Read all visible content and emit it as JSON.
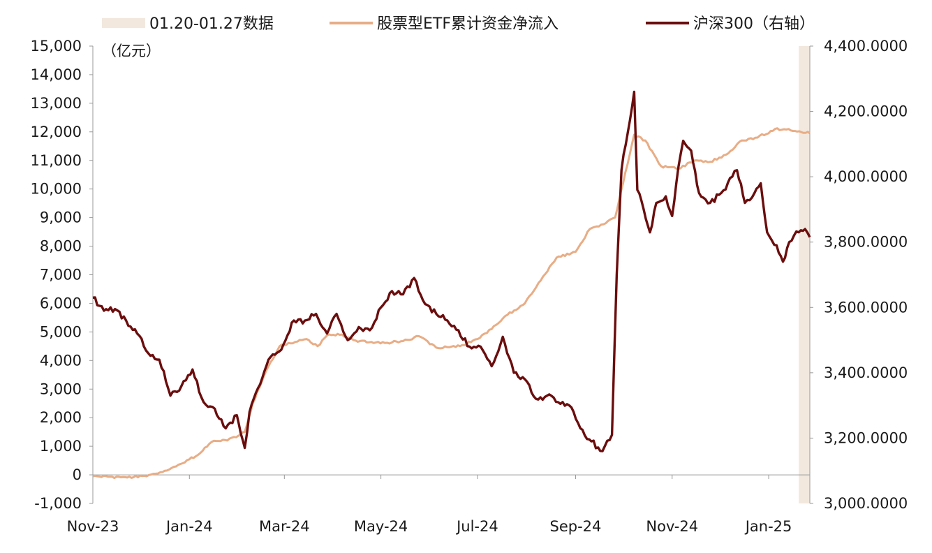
{
  "chart_data": {
    "type": "line",
    "y_unit_label": "（亿元）",
    "legend": [
      {
        "name": "01.20-01.27数据",
        "kind": "band",
        "color": "#f2e8de"
      },
      {
        "name": "股票型ETF累计资金净流入",
        "kind": "line",
        "color": "#e8ad86"
      },
      {
        "name": "沪深300（右轴）",
        "kind": "line",
        "color": "#6b0d0d"
      }
    ],
    "x_ticks": [
      "Nov-23",
      "Jan-24",
      "Mar-24",
      "May-24",
      "Jul-24",
      "Sep-24",
      "Nov-24",
      "Jan-25"
    ],
    "x_tick_dates": [
      "2023-11-01",
      "2024-01-01",
      "2024-03-01",
      "2024-05-01",
      "2024-07-01",
      "2024-09-01",
      "2024-11-01",
      "2025-01-01"
    ],
    "x_range": [
      "2023-11-01",
      "2025-01-27"
    ],
    "highlight_range": [
      "2025-01-20",
      "2025-01-27"
    ],
    "y_left": {
      "ylim": [
        -1000,
        15000
      ],
      "ticks": [
        "15,000",
        "14,000",
        "13,000",
        "12,000",
        "11,000",
        "10,000",
        "9,000",
        "8,000",
        "7,000",
        "6,000",
        "5,000",
        "4,000",
        "3,000",
        "2,000",
        "1,000",
        "0",
        "-1,000"
      ],
      "tick_values": [
        15000,
        14000,
        13000,
        12000,
        11000,
        10000,
        9000,
        8000,
        7000,
        6000,
        5000,
        4000,
        3000,
        2000,
        1000,
        0,
        -1000
      ]
    },
    "y_right": {
      "ylim": [
        3000,
        4400
      ],
      "ticks": [
        "4,400.0000",
        "4,200.0000",
        "4,000.0000",
        "3,800.0000",
        "3,600.0000",
        "3,400.0000",
        "3,200.0000",
        "3,000.0000"
      ],
      "tick_values": [
        4400,
        4200,
        4000,
        3800,
        3600,
        3400,
        3200,
        3000
      ]
    },
    "series": [
      {
        "name": "股票型ETF累计资金净流入",
        "axis": "left",
        "color": "#e8ad86",
        "points": [
          [
            "2023-11-01",
            -50
          ],
          [
            "2023-11-20",
            -80
          ],
          [
            "2023-12-05",
            -50
          ],
          [
            "2023-12-15",
            100
          ],
          [
            "2023-12-25",
            350
          ],
          [
            "2024-01-05",
            650
          ],
          [
            "2024-01-15",
            1150
          ],
          [
            "2024-01-25",
            1200
          ],
          [
            "2024-02-05",
            1500
          ],
          [
            "2024-02-10",
            2500
          ],
          [
            "2024-02-20",
            3800
          ],
          [
            "2024-02-27",
            4500
          ],
          [
            "2024-03-05",
            4600
          ],
          [
            "2024-03-15",
            4750
          ],
          [
            "2024-03-22",
            4500
          ],
          [
            "2024-03-28",
            4880
          ],
          [
            "2024-04-05",
            4900
          ],
          [
            "2024-04-15",
            4700
          ],
          [
            "2024-04-25",
            4650
          ],
          [
            "2024-05-05",
            4620
          ],
          [
            "2024-05-15",
            4680
          ],
          [
            "2024-05-25",
            4850
          ],
          [
            "2024-06-05",
            4450
          ],
          [
            "2024-06-20",
            4500
          ],
          [
            "2024-07-01",
            4750
          ],
          [
            "2024-07-10",
            5100
          ],
          [
            "2024-07-20",
            5600
          ],
          [
            "2024-07-31",
            6000
          ],
          [
            "2024-08-10",
            6800
          ],
          [
            "2024-08-20",
            7600
          ],
          [
            "2024-09-01",
            7800
          ],
          [
            "2024-09-10",
            8600
          ],
          [
            "2024-09-20",
            8800
          ],
          [
            "2024-09-26",
            9000
          ],
          [
            "2024-10-01",
            10200
          ],
          [
            "2024-10-08",
            11900
          ],
          [
            "2024-10-15",
            11700
          ],
          [
            "2024-10-25",
            10800
          ],
          [
            "2024-11-05",
            10700
          ],
          [
            "2024-11-15",
            11000
          ],
          [
            "2024-11-25",
            10950
          ],
          [
            "2024-12-05",
            11200
          ],
          [
            "2024-12-15",
            11700
          ],
          [
            "2024-12-25",
            11800
          ],
          [
            "2025-01-05",
            12100
          ],
          [
            "2025-01-15",
            12050
          ],
          [
            "2025-01-27",
            11950
          ]
        ]
      },
      {
        "name": "沪深300（右轴）",
        "axis": "right",
        "color": "#6b0d0d",
        "points": [
          [
            "2023-11-01",
            3630
          ],
          [
            "2023-11-08",
            3590
          ],
          [
            "2023-11-15",
            3595
          ],
          [
            "2023-11-22",
            3560
          ],
          [
            "2023-11-29",
            3520
          ],
          [
            "2023-12-06",
            3460
          ],
          [
            "2023-12-13",
            3440
          ],
          [
            "2023-12-20",
            3330
          ],
          [
            "2023-12-27",
            3360
          ],
          [
            "2024-01-03",
            3410
          ],
          [
            "2024-01-10",
            3310
          ],
          [
            "2024-01-17",
            3290
          ],
          [
            "2024-01-24",
            3230
          ],
          [
            "2024-01-31",
            3270
          ],
          [
            "2024-02-05",
            3170
          ],
          [
            "2024-02-08",
            3280
          ],
          [
            "2024-02-20",
            3440
          ],
          [
            "2024-02-28",
            3470
          ],
          [
            "2024-03-07",
            3560
          ],
          [
            "2024-03-14",
            3560
          ],
          [
            "2024-03-21",
            3580
          ],
          [
            "2024-03-28",
            3520
          ],
          [
            "2024-04-03",
            3580
          ],
          [
            "2024-04-10",
            3500
          ],
          [
            "2024-04-17",
            3540
          ],
          [
            "2024-04-24",
            3530
          ],
          [
            "2024-05-01",
            3600
          ],
          [
            "2024-05-08",
            3650
          ],
          [
            "2024-05-15",
            3640
          ],
          [
            "2024-05-22",
            3690
          ],
          [
            "2024-05-29",
            3610
          ],
          [
            "2024-06-05",
            3580
          ],
          [
            "2024-06-12",
            3560
          ],
          [
            "2024-06-19",
            3530
          ],
          [
            "2024-06-26",
            3480
          ],
          [
            "2024-07-03",
            3480
          ],
          [
            "2024-07-10",
            3420
          ],
          [
            "2024-07-17",
            3510
          ],
          [
            "2024-07-24",
            3400
          ],
          [
            "2024-07-31",
            3380
          ],
          [
            "2024-08-07",
            3320
          ],
          [
            "2024-08-14",
            3330
          ],
          [
            "2024-08-21",
            3310
          ],
          [
            "2024-08-28",
            3300
          ],
          [
            "2024-09-04",
            3230
          ],
          [
            "2024-09-11",
            3190
          ],
          [
            "2024-09-18",
            3160
          ],
          [
            "2024-09-24",
            3210
          ],
          [
            "2024-09-27",
            3700
          ],
          [
            "2024-09-30",
            4020
          ],
          [
            "2024-10-08",
            4260
          ],
          [
            "2024-10-10",
            3960
          ],
          [
            "2024-10-14",
            3900
          ],
          [
            "2024-10-18",
            3830
          ],
          [
            "2024-10-22",
            3920
          ],
          [
            "2024-10-28",
            3940
          ],
          [
            "2024-11-01",
            3880
          ],
          [
            "2024-11-05",
            4030
          ],
          [
            "2024-11-08",
            4110
          ],
          [
            "2024-11-13",
            4080
          ],
          [
            "2024-11-18",
            3950
          ],
          [
            "2024-11-25",
            3920
          ],
          [
            "2024-12-02",
            3950
          ],
          [
            "2024-12-09",
            4000
          ],
          [
            "2024-12-12",
            4020
          ],
          [
            "2024-12-17",
            3920
          ],
          [
            "2024-12-23",
            3950
          ],
          [
            "2024-12-27",
            3980
          ],
          [
            "2024-12-31",
            3830
          ],
          [
            "2025-01-06",
            3790
          ],
          [
            "2025-01-10",
            3740
          ],
          [
            "2025-01-14",
            3800
          ],
          [
            "2025-01-17",
            3820
          ],
          [
            "2025-01-20",
            3830
          ],
          [
            "2025-01-24",
            3840
          ],
          [
            "2025-01-27",
            3815
          ]
        ]
      }
    ]
  }
}
